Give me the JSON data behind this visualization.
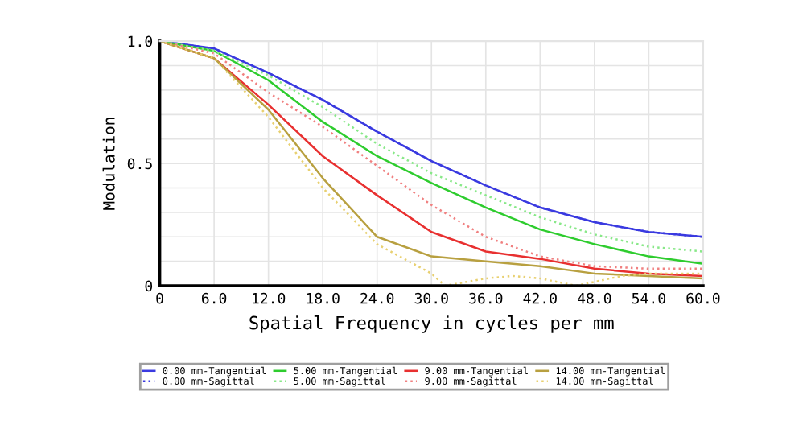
{
  "chart_data": {
    "type": "line",
    "xlabel": "Spatial Frequency in cycles per mm",
    "ylabel": "Modulation",
    "x": [
      0,
      6,
      12,
      18,
      24,
      30,
      36,
      42,
      48,
      54,
      60
    ],
    "xlim": [
      0,
      60
    ],
    "ylim": [
      0,
      1
    ],
    "xticks": [
      0,
      {
        "value": 6,
        "label": "6.0"
      },
      {
        "value": 12,
        "label": "12.0"
      },
      {
        "value": 18,
        "label": "18.0"
      },
      {
        "value": 24,
        "label": "24.0"
      },
      {
        "value": 30,
        "label": "30.0"
      },
      {
        "value": 36,
        "label": "36.0"
      },
      {
        "value": 42,
        "label": "42.0"
      },
      {
        "value": 48,
        "label": "48.0"
      },
      {
        "value": 54,
        "label": "54.0"
      },
      {
        "value": 60,
        "label": "60.0"
      }
    ],
    "yticks": [
      0,
      {
        "value": 0.1,
        "label": null
      },
      {
        "value": 0.2,
        "label": null
      },
      {
        "value": 0.3,
        "label": null
      },
      {
        "value": 0.4,
        "label": null
      },
      0.5,
      {
        "value": 0.6,
        "label": null
      },
      {
        "value": 0.7,
        "label": null
      },
      {
        "value": 0.8,
        "label": null
      },
      {
        "value": 0.9,
        "label": null
      },
      {
        "value": 1.0,
        "label": "1.0"
      }
    ],
    "grid": true,
    "legend": "bottom",
    "marker": "none",
    "series": [
      {
        "name": "0.00 mm-Tangential",
        "color": "#3a3ae0",
        "line_style": "solid",
        "values": [
          1.0,
          0.97,
          0.87,
          0.76,
          0.63,
          0.51,
          0.41,
          0.32,
          0.26,
          0.22,
          0.2
        ]
      },
      {
        "name": "0.00 mm-Sagittal",
        "color": "#3a3ae0",
        "line_style": "dotted",
        "values": [
          1.0,
          0.97,
          0.87,
          0.76,
          0.63,
          0.51,
          0.41,
          0.32,
          0.26,
          0.22,
          0.2
        ]
      },
      {
        "name": "5.00 mm-Tangential",
        "color": "#2ecc2e",
        "line_style": "solid",
        "values": [
          1.0,
          0.96,
          0.84,
          0.67,
          0.53,
          0.42,
          0.32,
          0.23,
          0.17,
          0.12,
          0.09
        ]
      },
      {
        "name": "5.00 mm-Sagittal",
        "color": "#88e888",
        "line_style": "dotted",
        "values": [
          1.0,
          0.96,
          0.86,
          0.73,
          0.58,
          0.46,
          0.37,
          0.28,
          0.21,
          0.16,
          0.14
        ]
      },
      {
        "name": "9.00 mm-Tangential",
        "color": "#e83030",
        "line_style": "solid",
        "values": [
          1.0,
          0.93,
          0.74,
          0.53,
          0.37,
          0.22,
          0.14,
          0.11,
          0.07,
          0.05,
          0.04
        ]
      },
      {
        "name": "9.00 mm-Sagittal",
        "color": "#f08080",
        "line_style": "dotted",
        "values": [
          1.0,
          0.95,
          0.79,
          0.65,
          0.49,
          0.33,
          0.2,
          0.12,
          0.08,
          0.07,
          0.07
        ]
      },
      {
        "name": "14.00 mm-Tangential",
        "color": "#b8a040",
        "line_style": "solid",
        "values": [
          1.0,
          0.93,
          0.72,
          0.44,
          0.2,
          0.12,
          0.1,
          0.08,
          0.05,
          0.04,
          0.03
        ]
      },
      {
        "name": "14.00 mm-Sagittal",
        "color": "#e8d070",
        "line_style": "dotted",
        "x": [
          0,
          6,
          12,
          18,
          24,
          30,
          31.5,
          36,
          39,
          42,
          46,
          51,
          54,
          60
        ],
        "values": [
          1.0,
          0.93,
          0.69,
          0.4,
          0.17,
          0.05,
          0.0,
          0.03,
          0.04,
          0.03,
          0.0,
          0.04,
          0.05,
          0.05
        ]
      }
    ]
  }
}
